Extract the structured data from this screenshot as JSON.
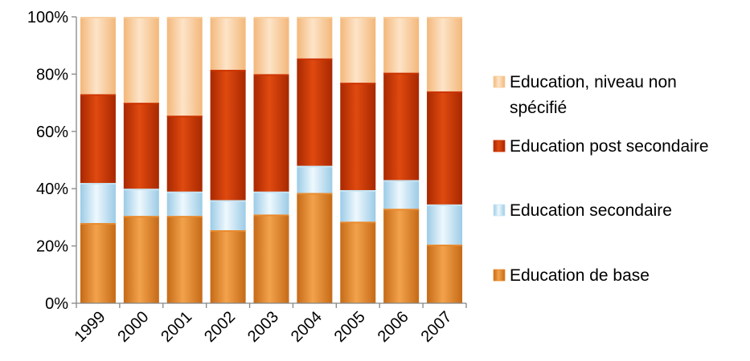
{
  "chart_data": {
    "type": "bar",
    "stacked": true,
    "percent_stacked": true,
    "categories": [
      "1999",
      "2000",
      "2001",
      "2002",
      "2003",
      "2004",
      "2005",
      "2006",
      "2007"
    ],
    "series": [
      {
        "name": "Education de base",
        "color": "#e98a2e",
        "values": [
          28,
          30.5,
          30.5,
          25.5,
          31,
          38.5,
          28.5,
          33,
          20.5
        ]
      },
      {
        "name": "Education secondaire",
        "color": "#c8e6f5",
        "values": [
          14,
          9.5,
          8.5,
          10.5,
          8,
          9.5,
          11,
          10,
          14
        ]
      },
      {
        "name": "Education post secondaire",
        "color": "#cc3300",
        "values": [
          31,
          30,
          26.5,
          45.5,
          41,
          37.5,
          37.5,
          37.5,
          39.5
        ]
      },
      {
        "name": "Education, niveau non spécifié",
        "legend_lines": [
          "Education, niveau non",
          "spécifié"
        ],
        "color": "#f9cfa0",
        "values": [
          27,
          30,
          34.5,
          18.5,
          20,
          14.5,
          23,
          19.5,
          26
        ]
      }
    ],
    "ylim": [
      0,
      100
    ],
    "yticks": [
      0,
      20,
      40,
      60,
      80,
      100
    ],
    "ytick_labels": [
      "0%",
      "20%",
      "40%",
      "60%",
      "80%",
      "100%"
    ],
    "grid": false,
    "legend_position": "right",
    "legend_order": [
      "Education, niveau non spécifié",
      "Education post secondaire",
      "Education secondaire",
      "Education de base"
    ]
  }
}
